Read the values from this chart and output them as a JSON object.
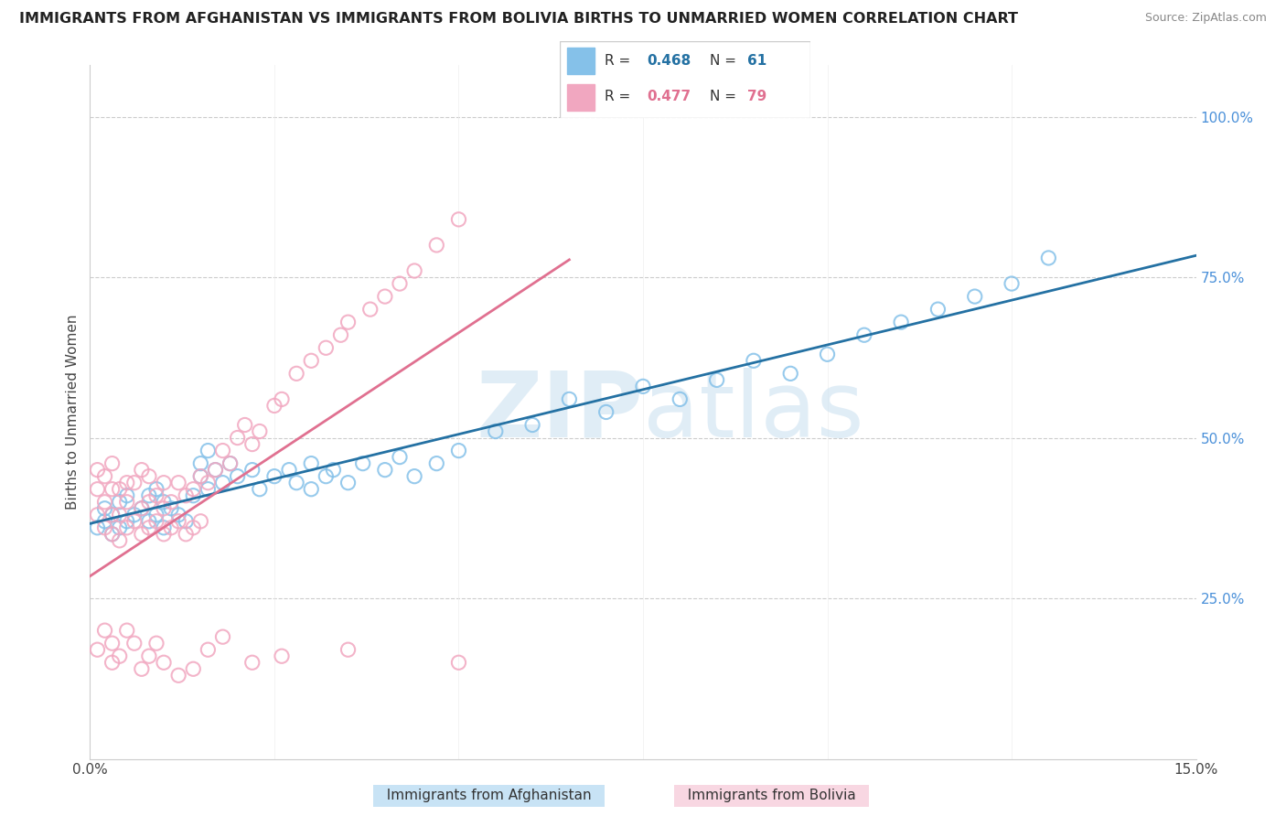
{
  "title": "IMMIGRANTS FROM AFGHANISTAN VS IMMIGRANTS FROM BOLIVIA BIRTHS TO UNMARRIED WOMEN CORRELATION CHART",
  "source": "Source: ZipAtlas.com",
  "ylabel": "Births to Unmarried Women",
  "xlim": [
    0.0,
    0.15
  ],
  "ylim": [
    0.0,
    1.08
  ],
  "afghanistan_color": "#85c1e9",
  "bolivia_color": "#f1a7c0",
  "afghanistan_line_color": "#2471a3",
  "bolivia_line_color": "#e07090",
  "r_afghanistan": 0.468,
  "n_afghanistan": 61,
  "r_bolivia": 0.477,
  "n_bolivia": 79,
  "watermark_zip": "ZIP",
  "watermark_atlas": "atlas",
  "legend_r_color": "#2471a3",
  "legend_r2_color": "#e07090",
  "afg_x": [
    0.001,
    0.002,
    0.002,
    0.003,
    0.003,
    0.004,
    0.004,
    0.005,
    0.005,
    0.006,
    0.007,
    0.008,
    0.008,
    0.009,
    0.009,
    0.01,
    0.01,
    0.011,
    0.012,
    0.013,
    0.014,
    0.015,
    0.015,
    0.016,
    0.016,
    0.017,
    0.018,
    0.019,
    0.02,
    0.022,
    0.023,
    0.025,
    0.027,
    0.028,
    0.03,
    0.03,
    0.032,
    0.033,
    0.035,
    0.037,
    0.04,
    0.042,
    0.044,
    0.047,
    0.05,
    0.055,
    0.06,
    0.065,
    0.07,
    0.075,
    0.08,
    0.085,
    0.09,
    0.095,
    0.1,
    0.105,
    0.11,
    0.115,
    0.12,
    0.125,
    0.13
  ],
  "afg_y": [
    0.36,
    0.37,
    0.39,
    0.35,
    0.38,
    0.36,
    0.4,
    0.37,
    0.41,
    0.38,
    0.39,
    0.37,
    0.41,
    0.38,
    0.42,
    0.36,
    0.4,
    0.39,
    0.38,
    0.37,
    0.41,
    0.44,
    0.46,
    0.42,
    0.48,
    0.45,
    0.43,
    0.46,
    0.44,
    0.45,
    0.42,
    0.44,
    0.45,
    0.43,
    0.46,
    0.42,
    0.44,
    0.45,
    0.43,
    0.46,
    0.45,
    0.47,
    0.44,
    0.46,
    0.48,
    0.51,
    0.52,
    0.56,
    0.54,
    0.58,
    0.56,
    0.59,
    0.62,
    0.6,
    0.63,
    0.66,
    0.68,
    0.7,
    0.72,
    0.74,
    0.78
  ],
  "bol_x": [
    0.001,
    0.001,
    0.001,
    0.002,
    0.002,
    0.002,
    0.003,
    0.003,
    0.003,
    0.003,
    0.004,
    0.004,
    0.004,
    0.005,
    0.005,
    0.005,
    0.006,
    0.006,
    0.007,
    0.007,
    0.007,
    0.008,
    0.008,
    0.008,
    0.009,
    0.009,
    0.01,
    0.01,
    0.01,
    0.011,
    0.011,
    0.012,
    0.012,
    0.013,
    0.013,
    0.014,
    0.014,
    0.015,
    0.015,
    0.016,
    0.017,
    0.018,
    0.019,
    0.02,
    0.021,
    0.022,
    0.023,
    0.025,
    0.026,
    0.028,
    0.03,
    0.032,
    0.034,
    0.035,
    0.038,
    0.04,
    0.042,
    0.044,
    0.047,
    0.05,
    0.001,
    0.002,
    0.003,
    0.003,
    0.004,
    0.005,
    0.006,
    0.007,
    0.008,
    0.009,
    0.01,
    0.012,
    0.014,
    0.016,
    0.018,
    0.022,
    0.026,
    0.035,
    0.05
  ],
  "bol_y": [
    0.38,
    0.42,
    0.45,
    0.36,
    0.4,
    0.44,
    0.35,
    0.38,
    0.42,
    0.46,
    0.34,
    0.38,
    0.42,
    0.36,
    0.4,
    0.43,
    0.37,
    0.43,
    0.35,
    0.39,
    0.45,
    0.36,
    0.4,
    0.44,
    0.37,
    0.41,
    0.35,
    0.39,
    0.43,
    0.36,
    0.4,
    0.37,
    0.43,
    0.35,
    0.41,
    0.36,
    0.42,
    0.37,
    0.44,
    0.43,
    0.45,
    0.48,
    0.46,
    0.5,
    0.52,
    0.49,
    0.51,
    0.55,
    0.56,
    0.6,
    0.62,
    0.64,
    0.66,
    0.68,
    0.7,
    0.72,
    0.74,
    0.76,
    0.8,
    0.84,
    0.17,
    0.2,
    0.15,
    0.18,
    0.16,
    0.2,
    0.18,
    0.14,
    0.16,
    0.18,
    0.15,
    0.13,
    0.14,
    0.17,
    0.19,
    0.15,
    0.16,
    0.17,
    0.15
  ]
}
